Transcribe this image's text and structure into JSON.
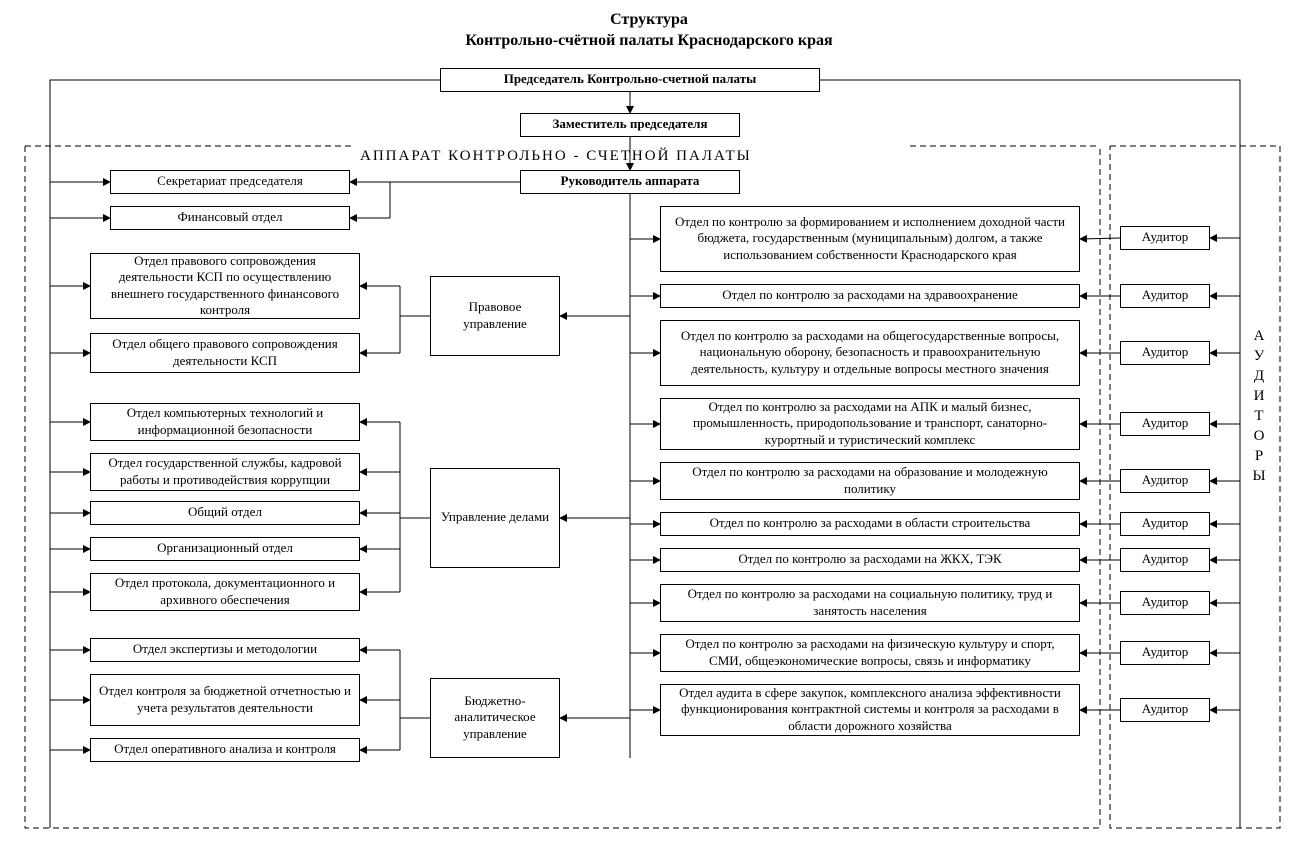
{
  "title_line1": "Структура",
  "title_line2": "Контрольно-счётной палаты Краснодарского края",
  "chairman": "Председатель Контрольно-счетной палаты",
  "deputy": "Заместитель председателя",
  "apparatus_label": "АППАРАТ КОНТРОЛЬНО  -  СЧЕТНОЙ ПАЛАТЫ",
  "head_apparatus": "Руководитель аппарата",
  "auditors_label": "АУДИТОРЫ",
  "auditor": "Аудитор",
  "left_top": {
    "secretariat": "Секретариат председателя",
    "finance": "Финансовый отдел"
  },
  "mgmt": {
    "legal": "Правовое управление",
    "affairs": "Управление делами",
    "budget": "Бюджетно-аналитическое управление"
  },
  "legal_depts": {
    "d1": "Отдел правового сопровождения деятельности КСП по осуществлению внешнего государственного финансового контроля",
    "d2": "Отдел общего правового сопровождения деятельности КСП"
  },
  "affairs_depts": {
    "d1": "Отдел компьютерных технологий и информационной безопасности",
    "d2": "Отдел государственной службы, кадровой работы и противодействия коррупции",
    "d3": "Общий отдел",
    "d4": "Организационный отдел",
    "d5": "Отдел протокола, документационного и архивного обеспечения"
  },
  "budget_depts": {
    "d1": "Отдел экспертизы и методологии",
    "d2": "Отдел контроля за бюджетной отчетностью и учета результатов деятельности",
    "d3": "Отдел оперативного анализа и контроля"
  },
  "control_depts": {
    "d1": "Отдел по контролю за формированием и исполнением доходной части бюджета, государственным (муниципальным) долгом, а также использованием собственности Краснодарского края",
    "d2": "Отдел по контролю за расходами на здравоохранение",
    "d3": "Отдел по контролю за расходами на общегосударственные вопросы, национальную оборону, безопасность и правоохранительную деятельность, культуру и отдельные вопросы местного значения",
    "d4": "Отдел по контролю за расходами на АПК и малый бизнес, промышленность, природопользование и транспорт, санаторно-курортный и туристический комплекс",
    "d5": "Отдел по контролю за расходами на образование и молодежную политику",
    "d6": "Отдел по контролю за расходами в области строительства",
    "d7": "Отдел по контролю за расходами на ЖКХ, ТЭК",
    "d8": "Отдел по контролю за расходами на социальную политику, труд и занятость населения",
    "d9": "Отдел по контролю за расходами на физическую культуру и спорт, СМИ, общеэкономические вопросы, связь и информатику",
    "d10": "Отдел аудита в сфере закупок, комплексного анализа эффективности функционирования контрактной системы и контроля за расходами в области дорожного хозяйства"
  },
  "style": {
    "bg": "#ffffff",
    "line": "#000000",
    "font": "Times New Roman",
    "title_fontsize": 16,
    "box_fontsize": 13,
    "label_fontsize": 15,
    "border_width": 1,
    "dash": "6,4"
  }
}
